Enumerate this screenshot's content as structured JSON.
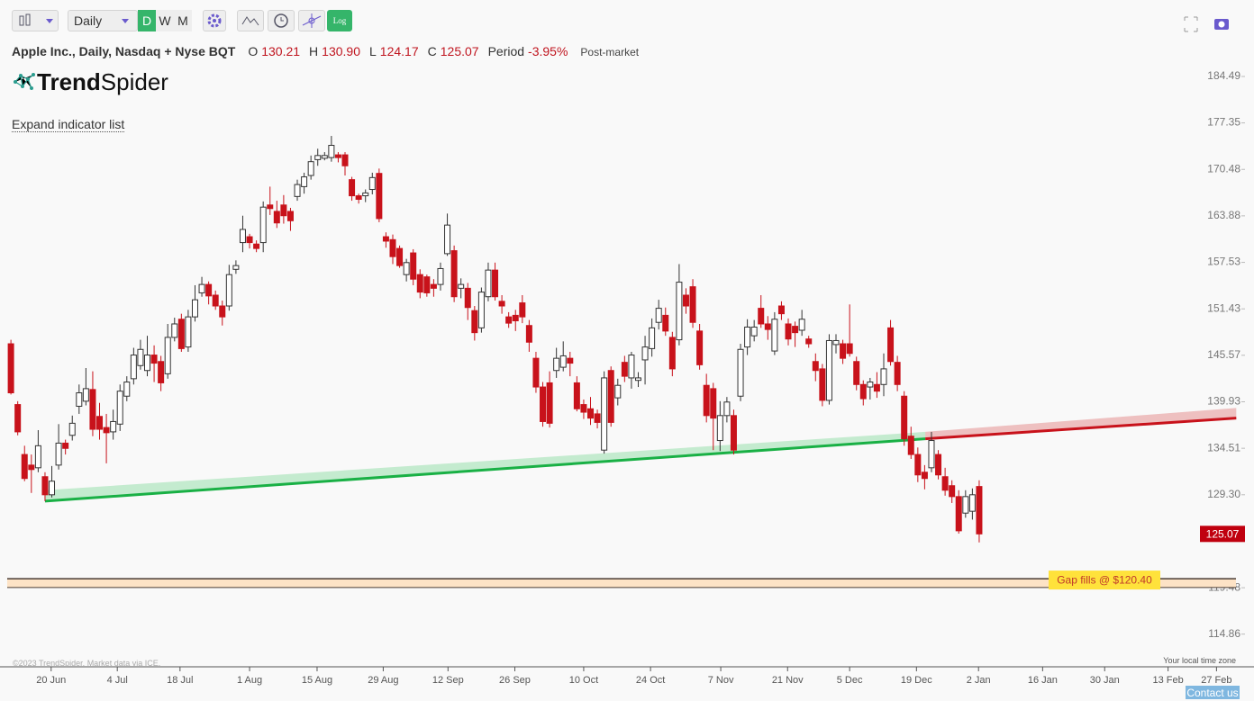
{
  "toolbar": {
    "timeframe": "Daily",
    "buttons": [
      "D",
      "W",
      "M"
    ],
    "log_button": "Log"
  },
  "header": {
    "symbol": "Apple Inc., Daily, Nasdaq + Nyse BQT",
    "items": [
      {
        "key": "O",
        "value": "130.21"
      },
      {
        "key": "H",
        "value": "130.90"
      },
      {
        "key": "L",
        "value": "124.17"
      },
      {
        "key": "C",
        "value": "125.07"
      },
      {
        "key": "Period",
        "value": "-3.95%"
      }
    ],
    "session": "Post-market"
  },
  "logo": {
    "bold": "Trend",
    "regular": "Spider"
  },
  "expand_link": "Expand indicator list",
  "footer": {
    "copyright": "©2023 TrendSpider. Market data via ICE.",
    "timezone": "Your local time zone",
    "contact": "Contact us"
  },
  "chart_data": {
    "type": "candlestick",
    "log_scale": true,
    "up_color": "#ffffff",
    "down_color": "#c8121b",
    "ylim": [
      111.8,
      185.9
    ],
    "yticks": [
      184.49,
      177.35,
      170.48,
      163.88,
      157.53,
      151.43,
      145.57,
      139.93,
      134.51,
      {
        "value": 129.3,
        "label": "129.30"
      },
      119.48,
      114.86
    ],
    "xlim": [
      -1.6,
      182.3
    ],
    "xticks": [
      {
        "value": 5.9,
        "label": "20 Jun"
      },
      {
        "value": 15.6,
        "label": "4 Jul"
      },
      {
        "value": 24.8,
        "label": "18 Jul"
      },
      {
        "value": 35.0,
        "label": "1 Aug"
      },
      {
        "value": 44.9,
        "label": "15 Aug"
      },
      {
        "value": 54.6,
        "label": "29 Aug"
      },
      {
        "value": 64.1,
        "label": "12 Sep"
      },
      {
        "value": 73.9,
        "label": "26 Sep"
      },
      {
        "value": 84.0,
        "label": "10 Oct"
      },
      {
        "value": 93.8,
        "label": "24 Oct"
      },
      {
        "value": 104.1,
        "label": "7 Nov"
      },
      {
        "value": 113.9,
        "label": "21 Nov"
      },
      {
        "value": 123.0,
        "label": "5 Dec"
      },
      {
        "value": 132.8,
        "label": "19 Dec"
      },
      {
        "value": 141.9,
        "label": "2 Jan"
      },
      {
        "value": 151.3,
        "label": "16 Jan"
      },
      {
        "value": 160.4,
        "label": "30 Jan"
      },
      {
        "value": 169.7,
        "label": "13 Feb"
      },
      {
        "value": 176.8,
        "label": "27 Feb"
      }
    ],
    "candles": [
      [
        147.0,
        147.5,
        140.8,
        141.0
      ],
      [
        139.6,
        140.0,
        136.0,
        136.4
      ],
      [
        133.8,
        134.8,
        130.8,
        131.1
      ],
      [
        132.6,
        133.8,
        129.5,
        132.1
      ],
      [
        132.3,
        136.6,
        131.8,
        134.8
      ],
      [
        131.3,
        131.8,
        128.6,
        129.3
      ],
      [
        129.3,
        132.5,
        129.0,
        130.8
      ],
      [
        132.6,
        137.3,
        132.1,
        135.1
      ],
      [
        135.1,
        135.5,
        133.8,
        134.5
      ],
      [
        136.0,
        138.3,
        135.4,
        137.4
      ],
      [
        139.4,
        142.0,
        138.5,
        141.0
      ],
      [
        140.0,
        144.0,
        139.5,
        141.5
      ],
      [
        141.4,
        143.6,
        135.9,
        136.7
      ],
      [
        138.2,
        139.8,
        135.5,
        136.7
      ],
      [
        136.9,
        138.5,
        132.8,
        136.3
      ],
      [
        136.4,
        139.0,
        135.5,
        137.6
      ],
      [
        137.3,
        142.0,
        136.5,
        141.2
      ],
      [
        140.6,
        143.0,
        140.0,
        142.3
      ],
      [
        142.7,
        146.5,
        142.0,
        145.6
      ],
      [
        144.3,
        147.5,
        143.8,
        146.3
      ],
      [
        143.7,
        148.0,
        143.0,
        145.6
      ],
      [
        145.6,
        146.8,
        142.3,
        144.6
      ],
      [
        144.8,
        145.5,
        141.2,
        142.2
      ],
      [
        143.3,
        149.5,
        142.7,
        147.8
      ],
      [
        147.8,
        150.3,
        147.3,
        149.5
      ],
      [
        150.1,
        150.8,
        146.0,
        146.4
      ],
      [
        146.6,
        151.3,
        146.0,
        150.4
      ],
      [
        150.4,
        154.5,
        149.8,
        152.6
      ],
      [
        153.5,
        155.6,
        153.0,
        154.6
      ],
      [
        154.6,
        155.0,
        152.0,
        153.1
      ],
      [
        153.2,
        153.8,
        151.3,
        151.8
      ],
      [
        151.8,
        152.5,
        149.3,
        150.4
      ],
      [
        151.8,
        157.2,
        151.2,
        155.9
      ],
      [
        156.6,
        157.8,
        156.0,
        157.1
      ],
      [
        160.2,
        163.9,
        158.9,
        162.0
      ],
      [
        161.0,
        161.4,
        159.4,
        160.2
      ],
      [
        160.0,
        160.5,
        158.9,
        159.4
      ],
      [
        160.2,
        165.9,
        158.9,
        165.1
      ],
      [
        165.4,
        168.0,
        164.0,
        164.9
      ],
      [
        164.5,
        166.0,
        162.2,
        162.9
      ],
      [
        165.4,
        166.8,
        162.8,
        163.9
      ],
      [
        164.5,
        165.0,
        161.8,
        163.2
      ],
      [
        166.6,
        169.0,
        166.0,
        168.3
      ],
      [
        168.0,
        170.0,
        167.0,
        169.4
      ],
      [
        169.6,
        172.5,
        169.0,
        171.6
      ],
      [
        171.9,
        173.5,
        171.0,
        172.5
      ],
      [
        172.1,
        173.0,
        171.8,
        172.5
      ],
      [
        172.2,
        175.4,
        171.6,
        174.0
      ],
      [
        172.6,
        173.0,
        171.5,
        172.2
      ],
      [
        172.6,
        173.0,
        169.6,
        171.0
      ],
      [
        169.0,
        169.4,
        166.0,
        166.7
      ],
      [
        166.7,
        167.0,
        165.6,
        166.2
      ],
      [
        166.7,
        167.6,
        165.8,
        167.1
      ],
      [
        167.6,
        170.0,
        166.9,
        169.3
      ],
      [
        169.9,
        170.6,
        163.0,
        163.5
      ],
      [
        161.0,
        161.6,
        159.5,
        160.4
      ],
      [
        160.6,
        161.3,
        157.3,
        158.3
      ],
      [
        159.4,
        159.8,
        156.8,
        157.1
      ],
      [
        155.9,
        158.0,
        155.0,
        157.5
      ],
      [
        158.8,
        159.3,
        154.5,
        155.3
      ],
      [
        155.9,
        156.6,
        152.8,
        153.6
      ],
      [
        155.6,
        155.9,
        153.0,
        153.5
      ],
      [
        154.6,
        155.3,
        153.0,
        154.1
      ],
      [
        154.6,
        157.5,
        153.8,
        156.7
      ],
      [
        158.7,
        164.2,
        158.4,
        162.6
      ],
      [
        159.1,
        159.8,
        152.3,
        153.0
      ],
      [
        154.1,
        155.4,
        152.8,
        154.6
      ],
      [
        154.1,
        154.8,
        150.0,
        151.6
      ],
      [
        151.2,
        151.8,
        147.4,
        148.4
      ],
      [
        149.0,
        154.2,
        148.4,
        153.6
      ],
      [
        153.0,
        157.5,
        152.4,
        156.5
      ],
      [
        156.5,
        157.5,
        152.5,
        153.0
      ],
      [
        152.4,
        153.2,
        150.8,
        151.8
      ],
      [
        150.4,
        151.0,
        149.0,
        149.6
      ],
      [
        150.6,
        151.3,
        148.6,
        149.9
      ],
      [
        152.2,
        153.2,
        149.6,
        150.4
      ],
      [
        149.3,
        150.0,
        146.0,
        147.2
      ],
      [
        145.2,
        146.0,
        141.0,
        141.7
      ],
      [
        141.7,
        142.3,
        137.0,
        137.6
      ],
      [
        142.2,
        143.6,
        136.9,
        137.4
      ],
      [
        143.7,
        146.5,
        142.8,
        145.2
      ],
      [
        144.1,
        147.3,
        143.6,
        145.5
      ],
      [
        145.2,
        146.0,
        143.0,
        144.6
      ],
      [
        142.2,
        143.0,
        138.8,
        139.1
      ],
      [
        139.6,
        140.2,
        137.9,
        138.7
      ],
      [
        139.1,
        140.5,
        137.2,
        138.0
      ],
      [
        138.5,
        139.0,
        136.8,
        137.5
      ],
      [
        134.3,
        143.6,
        133.9,
        142.8
      ],
      [
        143.7,
        144.2,
        137.0,
        137.5
      ],
      [
        140.4,
        142.7,
        139.5,
        141.9
      ],
      [
        144.7,
        145.5,
        142.3,
        143.0
      ],
      [
        142.8,
        146.0,
        141.5,
        145.6
      ],
      [
        142.5,
        143.5,
        141.7,
        142.8
      ],
      [
        145.0,
        148.0,
        142.0,
        146.6
      ],
      [
        146.4,
        150.2,
        145.4,
        149.0
      ],
      [
        149.7,
        152.6,
        148.8,
        151.5
      ],
      [
        150.6,
        151.6,
        148.0,
        148.6
      ],
      [
        147.8,
        148.5,
        143.0,
        143.9
      ],
      [
        147.5,
        157.3,
        146.8,
        154.9
      ],
      [
        153.2,
        154.1,
        150.8,
        151.8
      ],
      [
        154.3,
        155.3,
        149.0,
        149.7
      ],
      [
        148.6,
        149.5,
        143.8,
        144.4
      ],
      [
        141.9,
        143.3,
        137.5,
        138.3
      ],
      [
        141.5,
        142.2,
        134.3,
        138.0
      ],
      [
        135.4,
        140.0,
        134.2,
        138.3
      ],
      [
        138.3,
        140.5,
        137.5,
        139.9
      ],
      [
        138.3,
        139.0,
        133.8,
        134.3
      ],
      [
        140.6,
        147.0,
        140.0,
        146.3
      ],
      [
        146.6,
        150.1,
        145.6,
        149.1
      ],
      [
        148.0,
        150.0,
        147.3,
        149.1
      ],
      [
        151.5,
        153.2,
        149.0,
        149.5
      ],
      [
        149.5,
        150.5,
        147.5,
        148.8
      ],
      [
        146.1,
        151.0,
        145.6,
        150.1
      ],
      [
        151.8,
        152.4,
        150.0,
        150.8
      ],
      [
        149.5,
        150.2,
        146.8,
        147.6
      ],
      [
        149.2,
        149.8,
        146.6,
        148.4
      ],
      [
        148.7,
        151.3,
        148.0,
        150.1
      ],
      [
        147.6,
        148.0,
        146.5,
        147.0
      ],
      [
        144.8,
        145.8,
        142.4,
        143.7
      ],
      [
        143.9,
        144.5,
        139.4,
        140.1
      ],
      [
        140.1,
        148.2,
        139.6,
        147.4
      ],
      [
        146.9,
        148.2,
        145.8,
        147.4
      ],
      [
        147.0,
        147.5,
        144.5,
        145.2
      ],
      [
        147.0,
        152.0,
        145.4,
        145.8
      ],
      [
        144.8,
        145.4,
        141.3,
        142.0
      ],
      [
        142.0,
        142.5,
        139.5,
        140.3
      ],
      [
        141.7,
        142.8,
        140.2,
        142.3
      ],
      [
        142.0,
        143.5,
        140.4,
        141.2
      ],
      [
        142.0,
        145.8,
        140.6,
        143.9
      ],
      [
        149.0,
        150.0,
        144.3,
        144.8
      ],
      [
        144.7,
        145.5,
        141.2,
        142.0
      ],
      [
        140.6,
        141.2,
        134.8,
        135.6
      ],
      [
        135.9,
        137.0,
        133.3,
        133.8
      ],
      [
        133.8,
        134.6,
        130.7,
        131.5
      ],
      [
        131.8,
        132.6,
        129.9,
        131.1
      ],
      [
        132.3,
        136.4,
        131.8,
        135.4
      ],
      [
        133.8,
        134.3,
        131.0,
        131.5
      ],
      [
        131.3,
        132.3,
        129.2,
        129.8
      ],
      [
        130.3,
        130.9,
        128.4,
        129.1
      ],
      [
        129.1,
        129.8,
        125.1,
        125.4
      ],
      [
        127.3,
        129.8,
        126.8,
        129.1
      ],
      [
        127.5,
        130.0,
        126.6,
        129.3
      ],
      [
        130.21,
        130.9,
        124.17,
        125.07
      ]
    ],
    "trendlines": [
      {
        "color": "#19b045",
        "band_color": "rgba(60,200,100,0.28)",
        "x": [
          5.0,
          134.1
        ],
        "line": [
          128.6,
          135.6
        ],
        "band_top": [
          129.8,
          136.4
        ]
      },
      {
        "color": "#c8121b",
        "band_color": "rgba(215,70,70,0.32)",
        "x": [
          134.1,
          179.7
        ],
        "line": [
          135.6,
          138.0
        ],
        "band_top": [
          136.4,
          139.2
        ]
      }
    ],
    "gap": {
      "label": "Gap fills @ $120.40",
      "value": 120.4,
      "band_low": 119.5
    }
  }
}
